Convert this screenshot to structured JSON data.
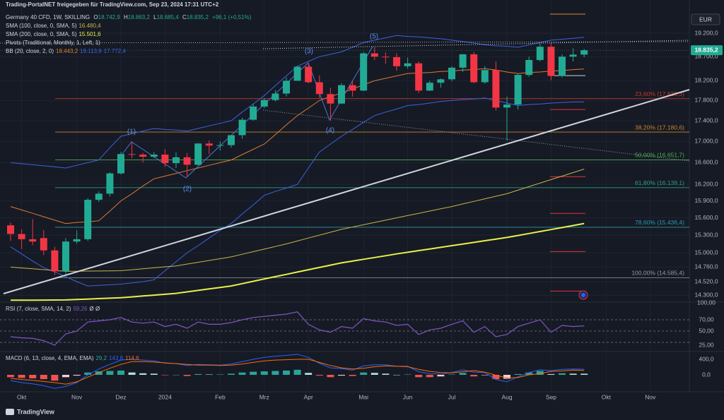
{
  "header": {
    "caption": "Trading-PortalNET freigegeben für TradingView.com, Sep 23, 2024 17:31 UTC+2",
    "symbol": "Germany 40 CFD, 1W, SKILLING",
    "ohlc": [
      "O",
      "18.742,9",
      "H",
      "18.863,2",
      "L",
      "18.685,4",
      "C",
      "18.835,2",
      "+96,1 (+0,51%)"
    ],
    "pivots": "Pivots (Traditional, Monthly, 1, Left, 1)",
    "currency": "EUR",
    "brand": "TradingView"
  },
  "chart_data": [
    {
      "type": "candlestick",
      "log": true,
      "ylim": [
        14190,
        19930
      ],
      "grid": true,
      "yticks": [
        {
          "value": 19200,
          "label": "19.200,0"
        },
        {
          "value": 18700,
          "label": "18.700,0"
        },
        {
          "value": 18200,
          "label": "18.200,0"
        },
        {
          "value": 17800,
          "label": "17.800,0"
        },
        {
          "value": 17400,
          "label": "17.400,0"
        },
        {
          "value": 17000,
          "label": "17.000,0"
        },
        {
          "value": 16600,
          "label": "16.600,0"
        },
        {
          "value": 16200,
          "label": "16.200,0"
        },
        {
          "value": 15900,
          "label": "15.900,0"
        },
        {
          "value": 15600,
          "label": "15.600,0"
        },
        {
          "value": 15300,
          "label": "15.300,0"
        },
        {
          "value": 15000,
          "label": "15.000,0"
        },
        {
          "value": 14760,
          "label": "14.760,0"
        },
        {
          "value": 14520,
          "label": "14.520,0"
        },
        {
          "value": 14300,
          "label": "14.300,0"
        }
      ],
      "categories": [
        null,
        "Okt",
        null,
        null,
        null,
        null,
        "Nov",
        null,
        null,
        null,
        "Dez",
        null,
        null,
        null,
        "2024",
        null,
        null,
        null,
        null,
        "Feb",
        null,
        null,
        null,
        "Mrz",
        null,
        null,
        null,
        "Apr",
        null,
        null,
        null,
        null,
        "Mai",
        null,
        null,
        null,
        "Jun",
        null,
        null,
        null,
        "Jul",
        null,
        null,
        null,
        null,
        "Aug",
        null,
        null,
        null,
        "Sep",
        null,
        null,
        null,
        null,
        "Okt",
        null,
        null,
        null,
        "Nov"
      ],
      "colors": {
        "up": "#22ab94",
        "down": "#f23645"
      },
      "open": [
        15470,
        15320,
        15230,
        15250,
        15040,
        14690,
        15190,
        15230,
        15920,
        16030,
        16400,
        16760,
        16750,
        16710,
        16750,
        16590,
        16700,
        16560,
        16960,
        16920,
        16930,
        17120,
        17420,
        17680,
        17810,
        17940,
        18200,
        18490,
        18170,
        17930,
        17740,
        18110,
        18000,
        18770,
        18700,
        18690,
        18500,
        18560,
        18000,
        18160,
        18230,
        18470,
        18750,
        18170,
        18420,
        17660,
        17720,
        18320,
        18630,
        18910,
        18300,
        18700,
        18742.9,
        null,
        null,
        null,
        null,
        null,
        null
      ],
      "high": [
        15520,
        15400,
        15580,
        15390,
        15100,
        15250,
        15380,
        15950,
        16070,
        16420,
        16800,
        17000,
        16780,
        16800,
        16850,
        16790,
        16780,
        16970,
        17020,
        17000,
        17100,
        17460,
        17740,
        17850,
        18010,
        18270,
        18510,
        18570,
        18310,
        18060,
        18150,
        18200,
        18800,
        18900,
        18790,
        18770,
        18680,
        18600,
        18200,
        18250,
        18500,
        18750,
        18800,
        18500,
        18600,
        17880,
        18350,
        18700,
        18970,
        18990,
        18750,
        18880,
        18863.2,
        null,
        null,
        null,
        null,
        null,
        null
      ],
      "low": [
        15200,
        15060,
        15130,
        14960,
        14630,
        14630,
        15150,
        15200,
        15880,
        15980,
        16380,
        16680,
        16600,
        16680,
        16520,
        16500,
        16340,
        16550,
        16760,
        16830,
        16880,
        17050,
        17400,
        17650,
        17780,
        17880,
        18200,
        18150,
        17850,
        17400,
        17730,
        17880,
        17990,
        18630,
        18550,
        18410,
        18450,
        17950,
        17990,
        18060,
        18190,
        18380,
        18150,
        18140,
        17600,
        17020,
        17620,
        18280,
        18600,
        18210,
        18270,
        18600,
        18685.4,
        null,
        null,
        null,
        null,
        null,
        null
      ],
      "close": [
        15320,
        15230,
        15190,
        15040,
        14690,
        15190,
        15230,
        15920,
        16030,
        16400,
        16760,
        16750,
        16710,
        16750,
        16590,
        16700,
        16560,
        16960,
        16920,
        16930,
        17120,
        17420,
        17680,
        17810,
        17940,
        18200,
        18490,
        18170,
        17930,
        17740,
        18110,
        18000,
        18770,
        18700,
        18690,
        18500,
        18560,
        18000,
        18160,
        18230,
        18470,
        18750,
        18170,
        18420,
        17660,
        17720,
        18320,
        18630,
        18910,
        18300,
        18700,
        18742.9,
        18835.2,
        null,
        null,
        null,
        null,
        null,
        null
      ],
      "overlays": [
        {
          "name": "SMA (100, close, 0, SMA, 5)",
          "last_label": "16.480,4",
          "color": "#c8b64a",
          "width": 1,
          "values": [
            14760,
            14746,
            14732,
            14718,
            14704,
            14690,
            14692,
            14694,
            14696,
            14698,
            14700,
            14716,
            14732,
            14748,
            14764,
            14780,
            14810,
            14840,
            14870,
            14900,
            14930,
            14974,
            15018,
            15062,
            15106,
            15150,
            15200,
            15250,
            15300,
            15350,
            15400,
            15440,
            15480,
            15520,
            15560,
            15600,
            15640,
            15680,
            15720,
            15760,
            15800,
            15846,
            15892,
            15938,
            15984,
            16030,
            16094,
            16158,
            16222,
            16286,
            16350,
            16415,
            16480.4,
            null,
            null,
            null,
            null,
            null,
            null
          ]
        },
        {
          "name": "SMA (200, close, 0, SMA, 5)",
          "last_label": "15.501,6",
          "color": "#e8f04a",
          "width": 2,
          "values": [
            14220,
            14221,
            14222,
            14223,
            14224,
            14225,
            14232,
            14239,
            14246,
            14253,
            14260,
            14274,
            14288,
            14302,
            14316,
            14330,
            14354,
            14378,
            14402,
            14426,
            14450,
            14488,
            14526,
            14564,
            14602,
            14640,
            14678,
            14716,
            14754,
            14792,
            14830,
            14860,
            14890,
            14920,
            14950,
            14980,
            15008,
            15036,
            15064,
            15092,
            15120,
            15148,
            15176,
            15204,
            15232,
            15260,
            15294,
            15328,
            15362,
            15396,
            15430,
            15466,
            15501.6,
            null,
            null,
            null,
            null,
            null,
            null
          ]
        }
      ],
      "bb": {
        "name": "BB (20, close, 2, 0)",
        "series": [
          {
            "last_label": "18.443,2",
            "color": "#e07b2a",
            "values": [
              15800,
              15740,
              15680,
              15620,
              15560,
              15500,
              15520,
              15530,
              15550,
              15720,
              15900,
              16030,
              16170,
              16300,
              16350,
              16400,
              16450,
              16500,
              16550,
              16600,
              16650,
              16750,
              16850,
              16950,
              17130,
              17320,
              17500,
              17650,
              17800,
              17880,
              17950,
              18030,
              18120,
              18200,
              18250,
              18300,
              18350,
              18360,
              18370,
              18390,
              18400,
              18420,
              18430,
              18450,
              18420,
              18380,
              18350,
              18370,
              18380,
              18400,
              18410,
              18430,
              18443.2,
              null,
              null,
              null,
              null,
              null,
              null
            ]
          },
          {
            "last_label": "19.113,9",
            "color": "#3c63e0",
            "values": [
              16600,
              16580,
              16560,
              16540,
              16520,
              16500,
              16550,
              16600,
              16650,
              16880,
              17100,
              17150,
              17200,
              17250,
              17230,
              17220,
              17200,
              17250,
              17300,
              17350,
              17400,
              17570,
              17730,
              17900,
              18100,
              18300,
              18500,
              18600,
              18700,
              18750,
              18800,
              18900,
              19000,
              19050,
              19100,
              19150,
              19130,
              19120,
              19100,
              19080,
              19050,
              19020,
              18990,
              18950,
              18930,
              18920,
              18900,
              18950,
              19000,
              19050,
              19070,
              19090,
              19113.9,
              null,
              null,
              null,
              null,
              null,
              null
            ]
          },
          {
            "last_label": "17.772,4",
            "color": "#3c63e0",
            "values": [
              15100,
              14980,
              14860,
              14750,
              14680,
              14600,
              14520,
              14450,
              14460,
              14470,
              14480,
              14500,
              14520,
              14550,
              14700,
              14850,
              15000,
              15120,
              15250,
              15380,
              15500,
              15670,
              15830,
              16000,
              16070,
              16130,
              16200,
              16500,
              16800,
              16950,
              17100,
              17230,
              17370,
              17500,
              17570,
              17630,
              17700,
              17720,
              17750,
              17780,
              17800,
              17820,
              17830,
              17850,
              17800,
              17750,
              17700,
              17720,
              17730,
              17750,
              17760,
              17770,
              17772.4,
              null,
              null,
              null,
              null,
              null,
              null
            ]
          }
        ]
      },
      "fib_levels": [
        {
          "value": 17838.3,
          "label": "23,60% (17.838,3)",
          "color": "#c0392b"
        },
        {
          "value": 17180.6,
          "label": "38,20% (17.180,6)",
          "color": "#c8862a"
        },
        {
          "value": 16651.7,
          "label": "50,00% (16.651,7)",
          "color": "#4caf50"
        },
        {
          "value": 16139.1,
          "label": "61,80% (16.139,1)",
          "color": "#2e9e80"
        },
        {
          "value": 15436.4,
          "label": "78,60% (15.436,4)",
          "color": "#2a9aa8"
        },
        {
          "value": 14585.4,
          "label": "100,00% (14.585,4)",
          "color": "#9598a1"
        }
      ],
      "pivots": [
        {
          "value": 19616,
          "color": "#e08a2a"
        },
        {
          "value": 18306,
          "color": "#d1d4dc"
        },
        {
          "value": 17622,
          "color": "#e0353f"
        },
        {
          "value": 16340,
          "color": "#e0353f"
        },
        {
          "value": 15680,
          "color": "#e0353f"
        },
        {
          "value": 15020,
          "color": "#e0353f"
        },
        {
          "value": 14367,
          "color": "#e0353f"
        }
      ],
      "last_price": {
        "value": 18835.2,
        "label": "18.835,2"
      },
      "annotations": [
        "(1)",
        "(2)",
        "(3)",
        "(4)",
        "(5)"
      ]
    },
    {
      "type": "line",
      "name": "RSI (7, close, SMA, 14, 2)",
      "value_label": "59,26",
      "extra": "Ø Ø",
      "color": "#7e57c2",
      "ylim": [
        13.75,
        101.25
      ],
      "yticks": [
        {
          "value": 100,
          "label": "100,00"
        },
        {
          "value": 70,
          "label": "70,00"
        },
        {
          "value": 50,
          "label": "50,00"
        },
        {
          "value": 25,
          "label": "25,00"
        }
      ],
      "bands": [
        70,
        50,
        30
      ],
      "values": [
        40,
        38,
        37,
        33,
        25,
        45,
        50,
        66,
        68,
        70,
        74,
        66,
        64,
        66,
        58,
        62,
        55,
        66,
        62,
        62,
        65,
        70,
        74,
        76,
        78,
        80,
        84,
        62,
        52,
        48,
        58,
        55,
        72,
        68,
        66,
        60,
        62,
        44,
        52,
        55,
        62,
        68,
        48,
        58,
        40,
        44,
        58,
        64,
        70,
        48,
        60,
        58,
        59.26,
        null,
        null,
        null,
        null,
        null,
        null
      ]
    },
    {
      "type": "macd",
      "name": "MACD (6, 13, close, 4, EMA, EMA)",
      "ylim": [
        -436,
        600
      ],
      "yticks": [
        {
          "value": 400,
          "label": "400,0"
        },
        {
          "value": 0,
          "label": "0,0"
        }
      ],
      "series": [
        {
          "name": "29,2",
          "kind": "histogram",
          "color": "#26a69a",
          "values": [
            -60,
            -80,
            -90,
            -110,
            -150,
            -60,
            -20,
            60,
            90,
            100,
            110,
            60,
            40,
            30,
            -10,
            0,
            -30,
            20,
            10,
            10,
            30,
            60,
            80,
            90,
            100,
            110,
            130,
            50,
            -20,
            -60,
            -20,
            -30,
            60,
            50,
            30,
            0,
            10,
            -60,
            -60,
            -40,
            10,
            50,
            -40,
            -10,
            -110,
            -100,
            20,
            60,
            100,
            20,
            40,
            30,
            29.2,
            null,
            null,
            null,
            null,
            null,
            null
          ]
        },
        {
          "name": "143,8",
          "kind": "line",
          "color": "#2962ff",
          "values": [
            -150,
            -200,
            -230,
            -280,
            -350,
            -300,
            -200,
            0,
            150,
            270,
            380,
            400,
            380,
            360,
            300,
            290,
            240,
            270,
            260,
            250,
            280,
            340,
            400,
            450,
            480,
            500,
            530,
            450,
            300,
            180,
            160,
            120,
            230,
            260,
            260,
            220,
            220,
            80,
            30,
            20,
            60,
            130,
            70,
            60,
            -120,
            -180,
            -50,
            60,
            130,
            110,
            140,
            150,
            143.8,
            null,
            null,
            null,
            null,
            null,
            null
          ]
        },
        {
          "name": "114,6",
          "kind": "line",
          "color": "#ff6d00",
          "values": [
            -90,
            -120,
            -140,
            -170,
            -200,
            -240,
            -180,
            -60,
            60,
            170,
            270,
            340,
            340,
            330,
            310,
            290,
            270,
            250,
            250,
            240,
            250,
            280,
            320,
            360,
            380,
            390,
            400,
            400,
            320,
            240,
            180,
            150,
            170,
            210,
            230,
            220,
            210,
            140,
            90,
            60,
            50,
            80,
            110,
            70,
            -10,
            -80,
            -70,
            0,
            30,
            90,
            100,
            120,
            114.6,
            null,
            null,
            null,
            null,
            null,
            null
          ]
        }
      ]
    }
  ]
}
